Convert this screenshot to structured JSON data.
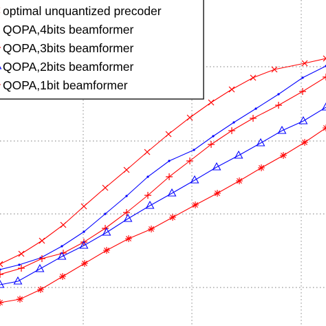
{
  "chart_data": {
    "type": "line",
    "grid": true,
    "legend": "top-left",
    "series": [
      {
        "name": "optimal unquantized precoder",
        "color": "#ff0000",
        "marker": "x",
        "points": [
          [
            0,
            384
          ],
          [
            31,
            369
          ],
          [
            61,
            350
          ],
          [
            92,
            327
          ],
          [
            122,
            300
          ],
          [
            153,
            273
          ],
          [
            184,
            247
          ],
          [
            214,
            221
          ],
          [
            245,
            195
          ],
          [
            276,
            171
          ],
          [
            307,
            149
          ],
          [
            337,
            130
          ],
          [
            368,
            113
          ],
          [
            399,
            101
          ],
          [
            443,
            92
          ],
          [
            474,
            85
          ]
        ]
      },
      {
        "name": "QOPA,4bits beamformer",
        "color": "#0000ff",
        "marker": "dot",
        "points": [
          [
            0,
            392
          ],
          [
            28,
            385
          ],
          [
            59,
            375
          ],
          [
            90,
            358
          ],
          [
            122,
            337
          ],
          [
            153,
            311
          ],
          [
            184,
            285
          ],
          [
            215,
            257
          ],
          [
            246,
            234
          ],
          [
            282,
            218
          ],
          [
            310,
            198
          ],
          [
            340,
            178
          ],
          [
            372,
            158
          ],
          [
            405,
            137
          ],
          [
            440,
            113
          ],
          [
            474,
            96
          ]
        ]
      },
      {
        "name": "QOPA,3bits beamformer",
        "color": "#ff0000",
        "marker": "+",
        "points": [
          [
            0,
            399
          ],
          [
            31,
            390
          ],
          [
            61,
            376
          ],
          [
            92,
            368
          ],
          [
            122,
            352
          ],
          [
            153,
            332
          ],
          [
            184,
            309
          ],
          [
            215,
            284
          ],
          [
            246,
            257
          ],
          [
            276,
            234
          ],
          [
            307,
            210
          ],
          [
            337,
            190
          ],
          [
            368,
            172
          ],
          [
            405,
            153
          ],
          [
            440,
            133
          ],
          [
            474,
            112
          ]
        ]
      },
      {
        "name": "QOPA,2bits beamformer",
        "color": "#0000ff",
        "marker": "triangle",
        "points": [
          [
            0,
            414
          ],
          [
            26,
            409
          ],
          [
            58,
            391
          ],
          [
            90,
            373
          ],
          [
            122,
            357
          ],
          [
            155,
            338
          ],
          [
            186,
            318
          ],
          [
            218,
            299
          ],
          [
            250,
            281
          ],
          [
            283,
            262
          ],
          [
            315,
            243
          ],
          [
            347,
            226
          ],
          [
            379,
            208
          ],
          [
            410,
            190
          ],
          [
            441,
            176
          ],
          [
            474,
            156
          ]
        ]
      },
      {
        "name": "QOPA,1bit beamformer",
        "color": "#ff0000",
        "marker": "*",
        "points": [
          [
            0,
            440
          ],
          [
            29,
            435
          ],
          [
            59,
            421
          ],
          [
            91,
            402
          ],
          [
            123,
            383
          ],
          [
            155,
            364
          ],
          [
            187,
            347
          ],
          [
            220,
            333
          ],
          [
            251,
            316
          ],
          [
            284,
            298
          ],
          [
            316,
            281
          ],
          [
            348,
            263
          ],
          [
            380,
            244
          ],
          [
            412,
            226
          ],
          [
            443,
            207
          ],
          [
            474,
            186
          ]
        ]
      }
    ]
  }
}
